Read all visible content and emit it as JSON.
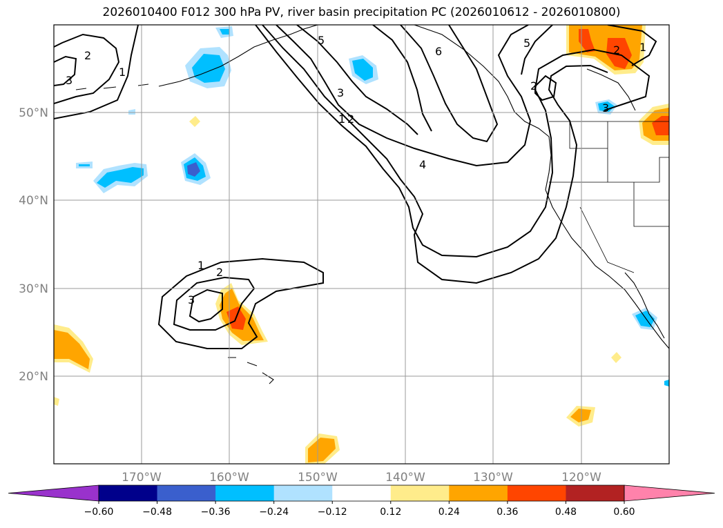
{
  "title": "2026010400 F012 300 hPa PV, river basin precipitation PC (2026010612 - 2026010800)",
  "lat_labels": [
    "50°N",
    "40°N",
    "30°N",
    "20°N"
  ],
  "lon_labels": [
    "170°W",
    "160°W",
    "150°W",
    "140°W",
    "130°W",
    "120°W"
  ],
  "colorbar": {
    "ticks": [
      "−0.60",
      "−0.48",
      "−0.36",
      "−0.24",
      "−0.12",
      "0.12",
      "0.24",
      "0.36",
      "0.48",
      "0.60"
    ],
    "colors": [
      "#9932CC",
      "#00008B",
      "#3A5FCD",
      "#00BFFF",
      "#B0E2FF",
      "#FFFFFF",
      "#FFEC8B",
      "#FFA500",
      "#FF4500",
      "#B22222",
      "#FF82AB"
    ]
  },
  "contour_labels": [
    "2",
    "3",
    "1",
    "5",
    "3",
    "1",
    "2",
    "4",
    "6",
    "5",
    "2",
    "2",
    "1",
    "3",
    "1",
    "2",
    "3"
  ]
}
